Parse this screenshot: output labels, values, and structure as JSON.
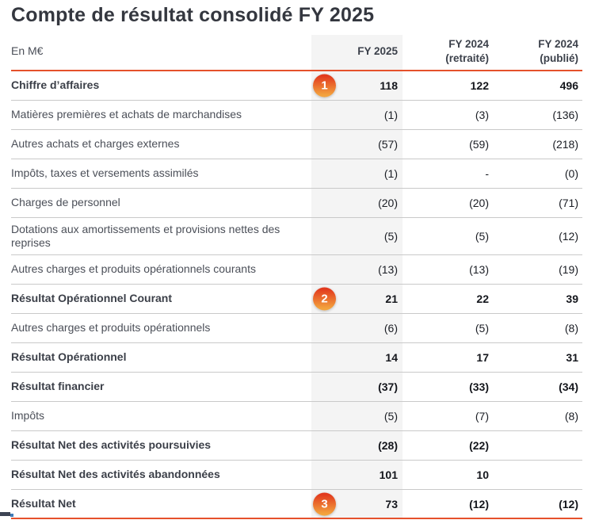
{
  "title": "Compte de résultat consolidé FY 2025",
  "colors": {
    "accent_orange": "#E5512B",
    "badge_gradient_top": "#E23A1E",
    "badge_gradient_bottom": "#F3A33E",
    "column_band_gray": "#F4F4F4",
    "separator_gray": "#C9C9C9",
    "title_color": "#34373F"
  },
  "table": {
    "unit_label": "En M€",
    "columns": [
      "FY 2025",
      "FY 2024\n(retraité)",
      "FY 2024\n(publié)"
    ],
    "rows": [
      {
        "label": "Chiffre d’affaires",
        "bold": true,
        "badge": "1",
        "values": [
          "118",
          "122",
          "496"
        ]
      },
      {
        "label": "Matières premières et achats de marchandises",
        "bold": false,
        "badge": "",
        "values": [
          "(1)",
          "(3)",
          "(136)"
        ]
      },
      {
        "label": "Autres achats et charges externes",
        "bold": false,
        "badge": "",
        "values": [
          "(57)",
          "(59)",
          "(218)"
        ]
      },
      {
        "label": "Impôts, taxes et versements assimilés",
        "bold": false,
        "badge": "",
        "values": [
          "(1)",
          "-",
          "(0)"
        ]
      },
      {
        "label": "Charges de personnel",
        "bold": false,
        "badge": "",
        "values": [
          "(20)",
          "(20)",
          "(71)"
        ]
      },
      {
        "label": "Dotations aux amortissements et provisions nettes des reprises",
        "bold": false,
        "badge": "",
        "twoline": true,
        "values": [
          "(5)",
          "(5)",
          "(12)"
        ]
      },
      {
        "label": "Autres charges et produits opérationnels courants",
        "bold": false,
        "badge": "",
        "values": [
          "(13)",
          "(13)",
          "(19)"
        ]
      },
      {
        "label": "Résultat Opérationnel Courant",
        "bold": true,
        "badge": "2",
        "values": [
          "21",
          "22",
          "39"
        ]
      },
      {
        "label": "Autres charges et produits opérationnels",
        "bold": false,
        "badge": "",
        "values": [
          "(6)",
          "(5)",
          "(8)"
        ]
      },
      {
        "label": "Résultat Opérationnel",
        "bold": true,
        "badge": "",
        "values": [
          "14",
          "17",
          "31"
        ]
      },
      {
        "label": "Résultat financier",
        "bold": true,
        "badge": "",
        "values": [
          "(37)",
          "(33)",
          "(34)"
        ]
      },
      {
        "label": "Impôts",
        "bold": false,
        "badge": "",
        "values": [
          "(5)",
          "(7)",
          "(8)"
        ]
      },
      {
        "label": "Résultat Net des activités poursuivies",
        "bold": true,
        "badge": "",
        "values": [
          "(28)",
          "(22)",
          ""
        ]
      },
      {
        "label": "Résultat Net des activités abandonnées",
        "bold": true,
        "badge": "",
        "values": [
          "101",
          "10",
          ""
        ]
      },
      {
        "label": "Résultat Net",
        "bold": true,
        "badge": "3",
        "values": [
          "73",
          "(12)",
          "(12)"
        ]
      }
    ]
  }
}
